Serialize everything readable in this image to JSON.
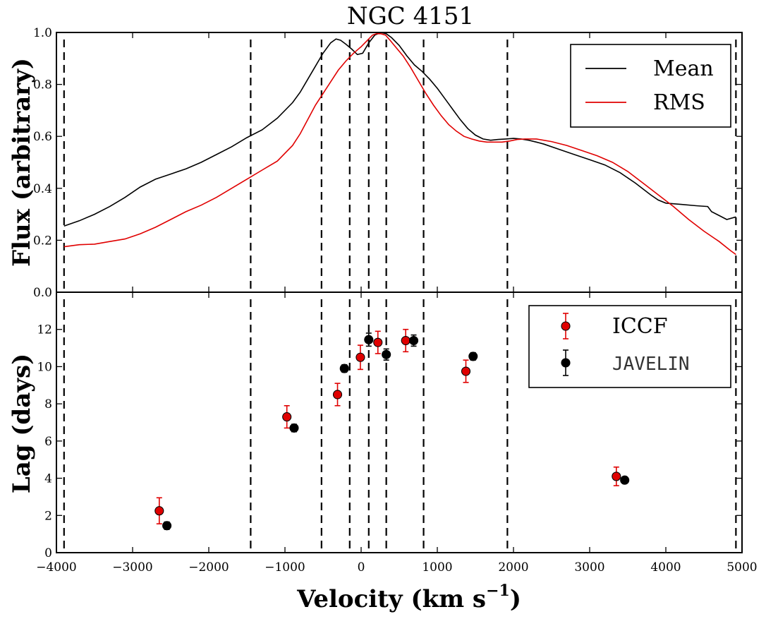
{
  "colors": {
    "mean": "#000000",
    "rms": "#e00000",
    "iccf": "#e00000",
    "javelin": "#000000"
  },
  "chart_data": {
    "type": "line",
    "title": "NGC 4151",
    "xlabel": "Velocity (km s−1)",
    "xlabel_main": "Velocity (km s",
    "xlabel_exp": "−1",
    "xlabel_close": ")",
    "xlim": [
      -4000,
      5000
    ],
    "x_ticks": [
      -4000,
      -3000,
      -2000,
      -1000,
      0,
      1000,
      2000,
      3000,
      4000,
      5000
    ],
    "x_tick_labels": [
      "−4000",
      "−3000",
      "−2000",
      "−1000",
      "0",
      "1000",
      "2000",
      "3000",
      "4000",
      "5000"
    ],
    "bin_edges": [
      -3900,
      -1450,
      -520,
      -150,
      100,
      330,
      820,
      1920,
      4920
    ],
    "panels": [
      {
        "name": "flux",
        "type": "line",
        "ylabel": "Flux (arbitrary)",
        "ylim": [
          0,
          1.0
        ],
        "y_ticks": [
          0,
          0.2,
          0.4,
          0.6,
          0.8,
          1.0
        ],
        "y_tick_labels": [
          "0.0",
          "0.2",
          "0.4",
          "0.6",
          "0.8",
          "1.0"
        ],
        "legend_position": "top-right",
        "series": [
          {
            "name": "Mean",
            "color": "#000000",
            "x": [
              -3900,
              -3700,
              -3500,
              -3300,
              -3100,
              -2900,
              -2700,
              -2500,
              -2300,
              -2100,
              -1900,
              -1700,
              -1500,
              -1300,
              -1100,
              -900,
              -800,
              -700,
              -600,
              -500,
              -400,
              -330,
              -270,
              -200,
              -120,
              -50,
              20,
              100,
              180,
              260,
              330,
              400,
              500,
              600,
              700,
              800,
              900,
              1000,
              1100,
              1200,
              1300,
              1400,
              1500,
              1600,
              1700,
              1800,
              1900,
              2000,
              2100,
              2200,
              2300,
              2400,
              2600,
              2800,
              3000,
              3200,
              3400,
              3600,
              3800,
              3900,
              4000,
              4200,
              4400,
              4550,
              4600,
              4700,
              4800,
              4920
            ],
            "y": [
              0.255,
              0.275,
              0.3,
              0.33,
              0.365,
              0.405,
              0.435,
              0.455,
              0.475,
              0.5,
              0.53,
              0.56,
              0.595,
              0.625,
              0.67,
              0.73,
              0.77,
              0.82,
              0.87,
              0.92,
              0.96,
              0.975,
              0.97,
              0.955,
              0.935,
              0.915,
              0.92,
              0.96,
              0.99,
              1.0,
              0.995,
              0.98,
              0.95,
              0.91,
              0.875,
              0.85,
              0.82,
              0.785,
              0.745,
              0.705,
              0.665,
              0.63,
              0.605,
              0.59,
              0.585,
              0.588,
              0.59,
              0.592,
              0.59,
              0.585,
              0.578,
              0.57,
              0.55,
              0.53,
              0.51,
              0.49,
              0.46,
              0.42,
              0.375,
              0.355,
              0.343,
              0.338,
              0.333,
              0.33,
              0.31,
              0.295,
              0.28,
              0.29
            ]
          },
          {
            "name": "RMS",
            "color": "#e00000",
            "x": [
              -3900,
              -3700,
              -3500,
              -3300,
              -3100,
              -2900,
              -2700,
              -2500,
              -2300,
              -2100,
              -1900,
              -1700,
              -1500,
              -1300,
              -1100,
              -900,
              -800,
              -700,
              -600,
              -500,
              -400,
              -300,
              -200,
              -100,
              0,
              100,
              150,
              200,
              260,
              320,
              380,
              450,
              550,
              650,
              750,
              850,
              950,
              1050,
              1150,
              1250,
              1350,
              1450,
              1550,
              1650,
              1750,
              1850,
              1950,
              2050,
              2150,
              2300,
              2500,
              2700,
              2900,
              3100,
              3300,
              3500,
              3700,
              3900,
              4100,
              4300,
              4500,
              4700,
              4850,
              4920
            ],
            "y": [
              0.175,
              0.183,
              0.185,
              0.195,
              0.205,
              0.225,
              0.25,
              0.28,
              0.31,
              0.335,
              0.365,
              0.4,
              0.435,
              0.47,
              0.505,
              0.565,
              0.61,
              0.665,
              0.72,
              0.765,
              0.81,
              0.855,
              0.89,
              0.92,
              0.945,
              0.975,
              0.99,
              0.995,
              0.995,
              0.99,
              0.97,
              0.945,
              0.91,
              0.865,
              0.815,
              0.765,
              0.72,
              0.68,
              0.645,
              0.62,
              0.6,
              0.59,
              0.582,
              0.578,
              0.578,
              0.578,
              0.582,
              0.588,
              0.59,
              0.59,
              0.58,
              0.565,
              0.545,
              0.525,
              0.5,
              0.465,
              0.42,
              0.375,
              0.33,
              0.28,
              0.235,
              0.195,
              0.16,
              0.145
            ]
          }
        ]
      },
      {
        "name": "lag",
        "type": "scatter",
        "ylabel": "Lag (days)",
        "ylim": [
          0,
          14
        ],
        "y_ticks": [
          0,
          2,
          4,
          6,
          8,
          10,
          12
        ],
        "y_tick_labels": [
          "0",
          "2",
          "4",
          "6",
          "8",
          "10",
          "12"
        ],
        "legend_position": "top-right",
        "series": [
          {
            "name": "ICCF",
            "color": "#e00000",
            "x": [
              -2650,
              -975,
              -310,
              -10,
              220,
              585,
              1375,
              3350
            ],
            "y": [
              2.25,
              7.3,
              8.5,
              10.5,
              11.3,
              11.4,
              9.75,
              4.1
            ],
            "err": [
              0.7,
              0.6,
              0.6,
              0.65,
              0.6,
              0.6,
              0.6,
              0.5
            ]
          },
          {
            "name": "JAVELIN",
            "color": "#000000",
            "x": [
              -2550,
              -880,
              -220,
              100,
              330,
              690,
              1470,
              3460
            ],
            "y": [
              1.45,
              6.7,
              9.9,
              11.45,
              10.65,
              11.4,
              10.55,
              3.9
            ],
            "err": [
              0.2,
              0.2,
              0.2,
              0.35,
              0.3,
              0.3,
              0.2,
              0.15
            ]
          }
        ]
      }
    ]
  }
}
